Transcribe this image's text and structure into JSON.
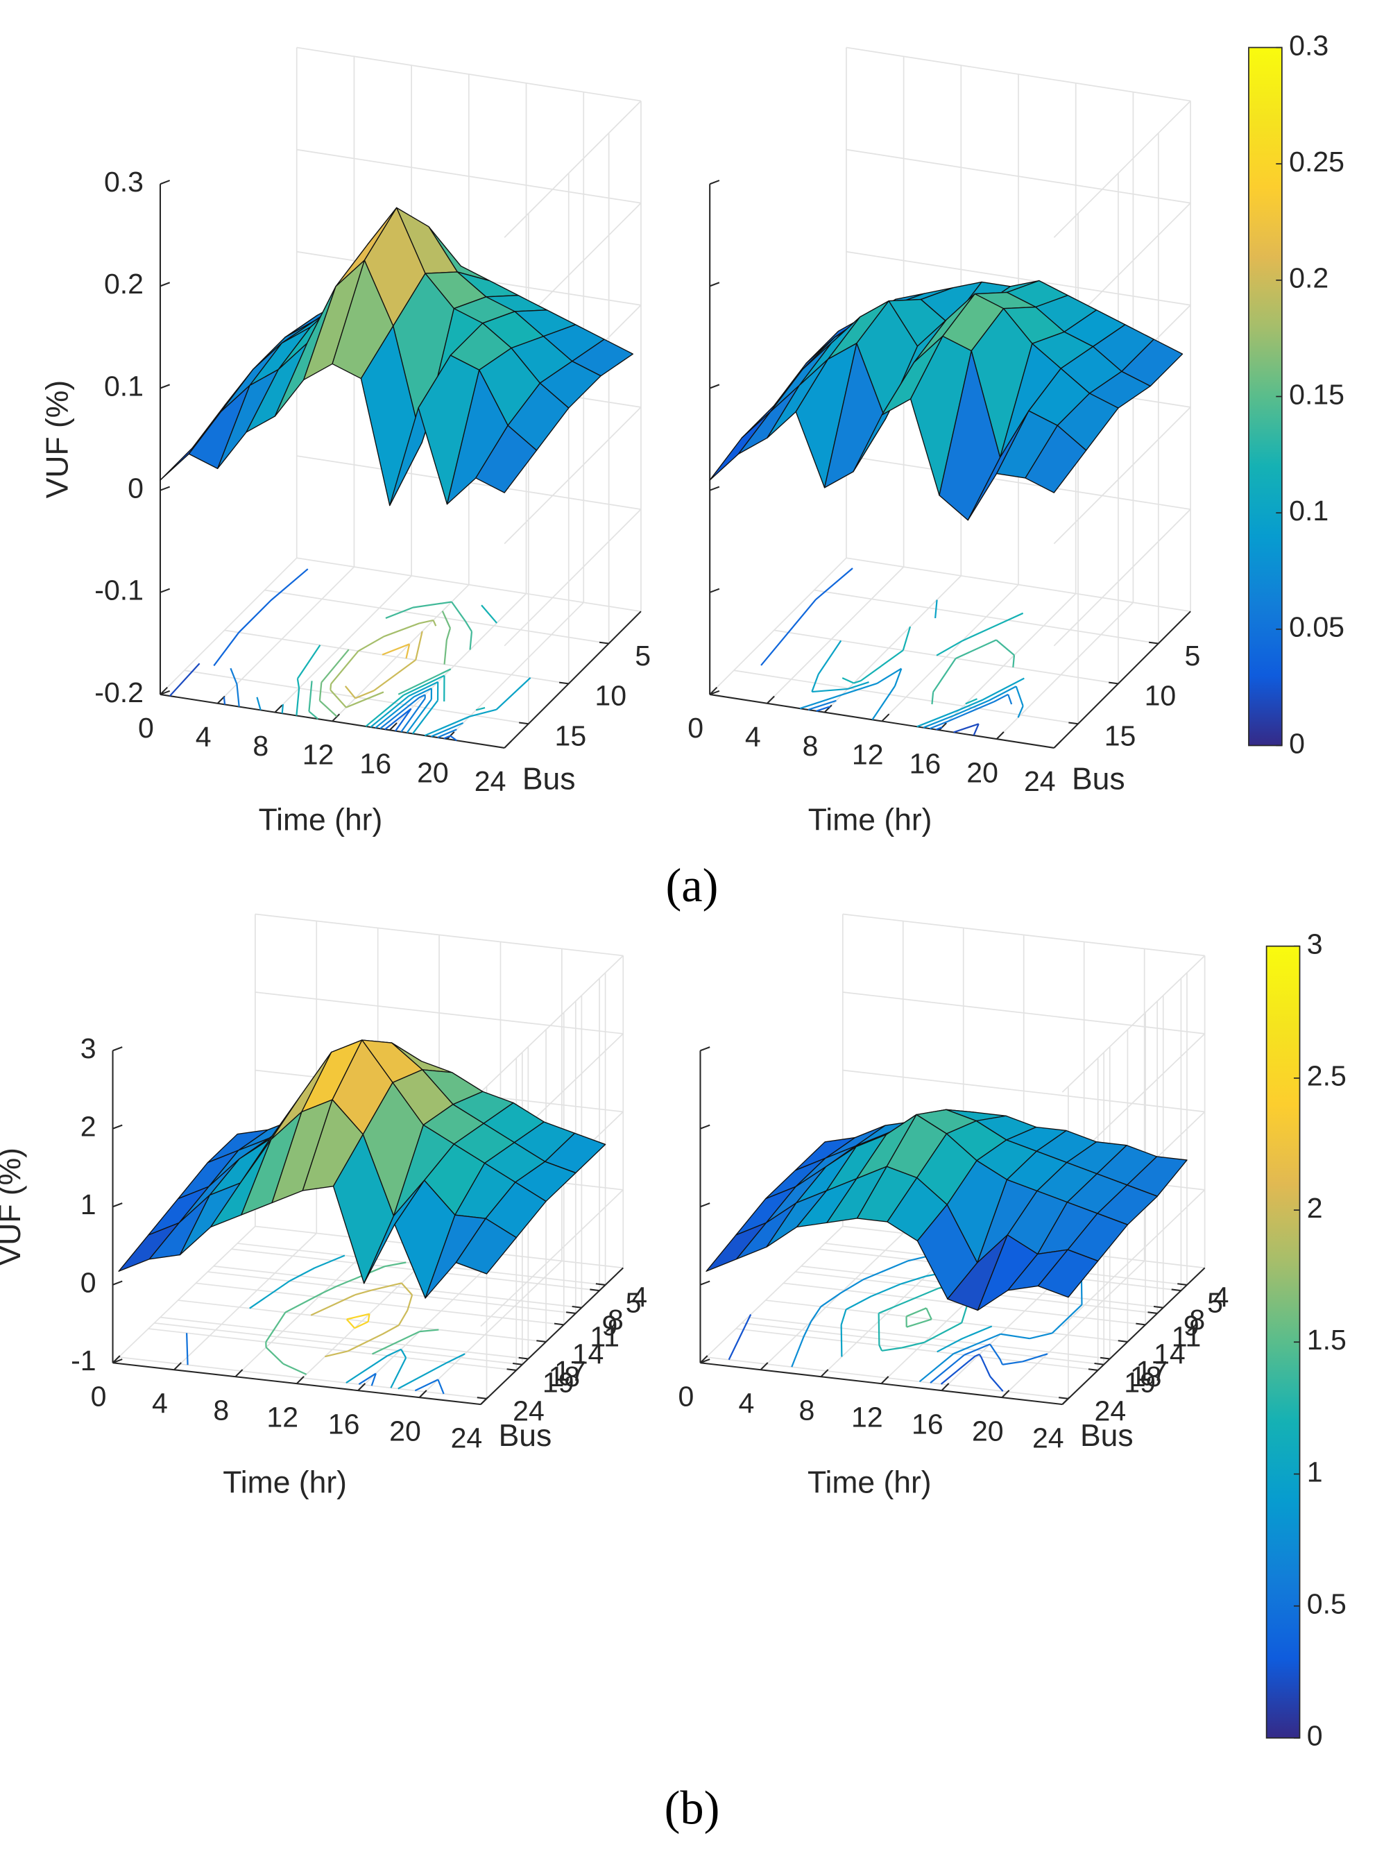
{
  "chart_data": [
    {
      "type": "surface",
      "caption": "(a)",
      "colormap": "parula",
      "colorbar": {
        "lim": [
          0,
          0.3
        ],
        "ticks": [
          0,
          0.05,
          0.1,
          0.15,
          0.2,
          0.25,
          0.3
        ]
      },
      "panels": [
        {
          "zlabel": "VUF (%)",
          "xlabel": "Time (hr)",
          "buslabel": "Bus",
          "zticklabels": true,
          "x": [
            0,
            2,
            4,
            6,
            8,
            10,
            12,
            14,
            16,
            18,
            20,
            22,
            24
          ],
          "bus": [
            2,
            6,
            10,
            14,
            18
          ],
          "xlim": [
            0,
            24
          ],
          "buslim": [
            1,
            18
          ],
          "zlim": [
            -0.2,
            0.3
          ],
          "xticks": [
            0,
            4,
            8,
            12,
            16,
            20,
            24
          ],
          "busticks": [
            5,
            10,
            15
          ],
          "zticks": [
            -0.2,
            -0.1,
            0,
            0.1,
            0.2,
            0.3
          ],
          "contour_levels": [
            0.02,
            0.04,
            0.06,
            0.08,
            0.1,
            0.12,
            0.14,
            0.16,
            0.18,
            0.2,
            0.22
          ],
          "z": [
            [
              0.02,
              0.05,
              0.07,
              0.09,
              0.1,
              0.11,
              0.12,
              0.11,
              0.1,
              0.09,
              0.08,
              0.07,
              0.06
            ],
            [
              0.02,
              0.06,
              0.08,
              0.1,
              0.12,
              0.16,
              0.19,
              0.15,
              0.13,
              0.12,
              0.1,
              0.08,
              0.07
            ],
            [
              0.02,
              0.06,
              0.09,
              0.11,
              0.14,
              0.2,
              0.24,
              0.18,
              0.15,
              0.14,
              0.12,
              0.09,
              0.07
            ],
            [
              0.01,
              0.05,
              0.08,
              0.1,
              0.13,
              0.19,
              0.22,
              0.16,
              0.05,
              0.14,
              0.13,
              0.08,
              0.06
            ],
            [
              0.01,
              0.04,
              0.03,
              0.07,
              0.09,
              0.13,
              0.15,
              0.14,
              0.02,
              0.12,
              0.03,
              0.06,
              0.05
            ]
          ]
        },
        {
          "xlabel": "Time (hr)",
          "buslabel": "Bus",
          "zticklabels": false,
          "x": [
            0,
            2,
            4,
            6,
            8,
            10,
            12,
            14,
            16,
            18,
            20,
            22,
            24
          ],
          "bus": [
            2,
            6,
            10,
            14,
            18
          ],
          "xlim": [
            0,
            24
          ],
          "buslim": [
            1,
            18
          ],
          "zlim": [
            -0.2,
            0.3
          ],
          "xticks": [
            0,
            4,
            8,
            12,
            16,
            20,
            24
          ],
          "busticks": [
            5,
            10,
            15
          ],
          "zticks": [
            -0.2,
            -0.1,
            0,
            0.1,
            0.2,
            0.3
          ],
          "contour_levels": [
            0.02,
            0.04,
            0.06,
            0.08,
            0.1,
            0.12,
            0.14,
            0.16
          ],
          "z": [
            [
              0.03,
              0.05,
              0.07,
              0.08,
              0.09,
              0.1,
              0.1,
              0.11,
              0.1,
              0.09,
              0.08,
              0.07,
              0.06
            ],
            [
              0.03,
              0.06,
              0.08,
              0.1,
              0.11,
              0.09,
              0.11,
              0.13,
              0.12,
              0.1,
              0.09,
              0.07,
              0.06
            ],
            [
              0.02,
              0.06,
              0.09,
              0.12,
              0.14,
              0.1,
              0.13,
              0.16,
              0.15,
              0.12,
              0.1,
              0.08,
              0.07
            ],
            [
              0.02,
              0.05,
              0.08,
              0.11,
              0.13,
              0.06,
              0.12,
              0.15,
              0.14,
              0.04,
              0.09,
              0.08,
              0.06
            ],
            [
              0.01,
              0.04,
              0.06,
              0.09,
              0.02,
              0.04,
              0.1,
              0.12,
              0.03,
              0.01,
              0.06,
              0.06,
              0.05
            ]
          ]
        }
      ]
    },
    {
      "type": "surface",
      "caption": "(b)",
      "colormap": "parula",
      "colorbar": {
        "lim": [
          0,
          3
        ],
        "ticks": [
          0,
          0.5,
          1,
          1.5,
          2,
          2.5,
          3
        ]
      },
      "panels": [
        {
          "zlabel": "VUF (%)",
          "xlabel": "Time (hr)",
          "buslabel": "Bus",
          "zticklabels": true,
          "x": [
            0,
            2,
            4,
            6,
            8,
            10,
            12,
            14,
            16,
            18,
            20,
            22,
            24
          ],
          "bus": [
            4,
            9,
            14,
            19,
            24
          ],
          "xlim": [
            0,
            24
          ],
          "buslim": [
            1,
            25
          ],
          "zlim": [
            -1,
            3
          ],
          "xticks": [
            0,
            4,
            8,
            12,
            16,
            20,
            24
          ],
          "busticks": [
            4,
            5,
            8,
            9,
            11,
            14,
            17,
            18,
            19,
            24
          ],
          "zticks": [
            -1,
            0,
            1,
            2,
            3
          ],
          "contour_levels": [
            0.5,
            1,
            1.5,
            2,
            2.5
          ],
          "z": [
            [
              0.4,
              0.5,
              0.7,
              0.9,
              1.1,
              1.4,
              1.6,
              1.5,
              1.3,
              1.2,
              1.0,
              0.9,
              0.8
            ],
            [
              0.4,
              0.6,
              0.8,
              1.1,
              1.4,
              1.9,
              2.2,
              1.9,
              1.5,
              1.3,
              1.1,
              0.9,
              0.8
            ],
            [
              0.3,
              0.5,
              0.9,
              1.2,
              1.8,
              2.4,
              2.6,
              2.1,
              1.6,
              1.4,
              1.2,
              1.0,
              0.8
            ],
            [
              0.2,
              0.4,
              0.8,
              1.0,
              1.6,
              2.0,
              2.2,
              1.8,
              0.8,
              1.3,
              0.9,
              0.9,
              0.7
            ],
            [
              0.1,
              0.3,
              0.4,
              0.8,
              1.0,
              1.2,
              1.4,
              1.5,
              0.3,
              1.1,
              0.2,
              0.7,
              0.6
            ]
          ]
        },
        {
          "xlabel": "Time (hr)",
          "buslabel": "Bus",
          "zticklabels": false,
          "x": [
            0,
            2,
            4,
            6,
            8,
            10,
            12,
            14,
            16,
            18,
            20,
            22,
            24
          ],
          "bus": [
            4,
            9,
            14,
            19,
            24
          ],
          "xlim": [
            0,
            24
          ],
          "buslim": [
            1,
            25
          ],
          "zlim": [
            -1,
            3
          ],
          "xticks": [
            0,
            4,
            8,
            12,
            16,
            20,
            24
          ],
          "busticks": [
            4,
            5,
            8,
            9,
            11,
            14,
            17,
            18,
            19,
            24
          ],
          "zticks": [
            -1,
            0,
            1,
            2,
            3
          ],
          "contour_levels": [
            0.25,
            0.5,
            0.75,
            1,
            1.25,
            1.5
          ],
          "z": [
            [
              0.3,
              0.4,
              0.6,
              0.7,
              0.8,
              0.9,
              0.9,
              0.8,
              0.8,
              0.7,
              0.7,
              0.6,
              0.6
            ],
            [
              0.3,
              0.5,
              0.7,
              0.9,
              1.1,
              1.3,
              1.2,
              1.0,
              0.9,
              0.8,
              0.7,
              0.6,
              0.5
            ],
            [
              0.3,
              0.5,
              0.8,
              1.1,
              1.3,
              1.6,
              1.4,
              1.1,
              0.9,
              0.8,
              0.7,
              0.6,
              0.5
            ],
            [
              0.2,
              0.4,
              0.7,
              0.9,
              1.1,
              1.3,
              1.2,
              0.9,
              0.2,
              0.6,
              0.4,
              0.5,
              0.4
            ],
            [
              0.1,
              0.3,
              0.5,
              0.8,
              0.9,
              1.0,
              1.0,
              0.8,
              0.1,
              0.0,
              0.3,
              0.4,
              0.3
            ]
          ]
        }
      ]
    }
  ]
}
